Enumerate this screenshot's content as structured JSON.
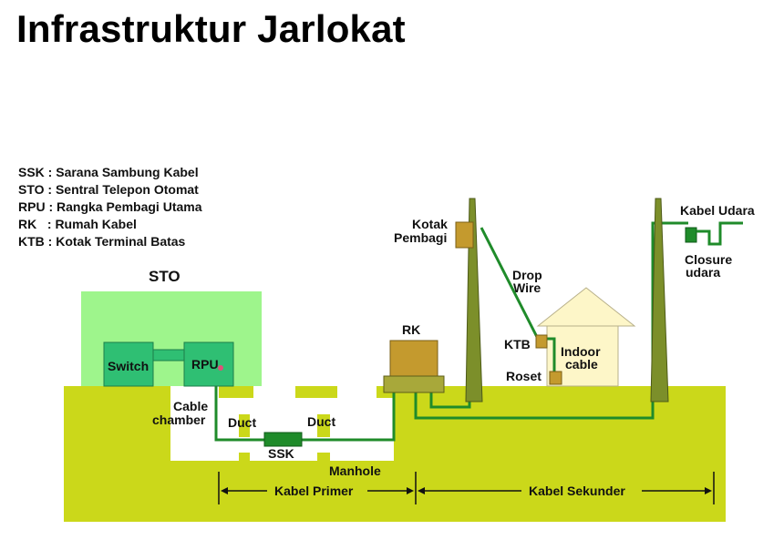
{
  "title": "Infrastruktur Jarlokat",
  "legend": [
    "SSK : Sarana Sambung Kabel",
    "STO : Sentral Telepon Otomat",
    "RPU : Rangka Pembagi Utama",
    "RK   : Rumah Kabel",
    "KTB : Kotak Terminal Batas"
  ],
  "labels": {
    "sto": "STO",
    "switch": "Switch",
    "rpu": "RPU",
    "cable_chamber_1": "Cable",
    "cable_chamber_2": "chamber",
    "duct_left": "Duct",
    "duct_right": "Duct",
    "ssk": "SSK",
    "manhole": "Manhole",
    "rk": "RK",
    "kotak_pembagi_1": "Kotak",
    "kotak_pembagi_2": "Pembagi",
    "drop_wire_1": "Drop",
    "drop_wire_2": "Wire",
    "ktb": "KTB",
    "roset": "Roset",
    "indoor_cable_1": "Indoor",
    "indoor_cable_2": "cable",
    "kabel_udara": "Kabel Udara",
    "closure_udara_1": "Closure",
    "closure_udara_2": "udara",
    "kabel_primer": "Kabel Primer",
    "kabel_sekunder": "Kabel Sekunder"
  },
  "colors": {
    "ground": "#cbd81a",
    "sto_building": "#9ef58c",
    "equipment": "#2fbf73",
    "cable": "#1f8b2a",
    "pole": "#7c8f2a",
    "rk_box": "#c49a2e",
    "rk_base": "#a8a83a",
    "house": "#fdf6c8"
  }
}
